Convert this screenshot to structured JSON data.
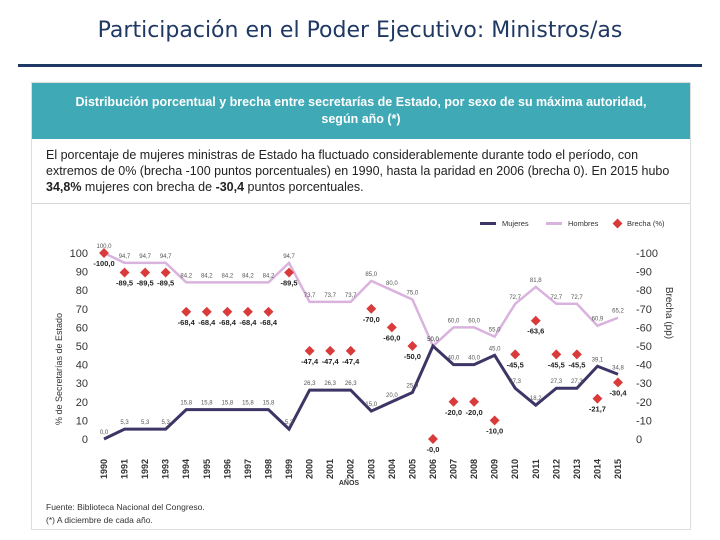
{
  "slide_title": "Participación en el Poder Ejecutivo: Ministros/as",
  "panel": {
    "header": "Distribución porcentual y brecha entre secretarías de Estado, por sexo de su máxima autoridad, según año (*)",
    "desc_1": "El porcentaje de mujeres ministras de Estado ha fluctuado considerablemente durante todo el período, con extremos de 0% (brecha -100 puntos porcentuales) en 1990, hasta la paridad en 2006 (brecha 0). En 2015 hubo ",
    "desc_bold_1": "34,8%",
    "desc_2": " mujeres con brecha de ",
    "desc_bold_2": "-30,4",
    "desc_3": " puntos porcentuales.",
    "source_1": "Fuente: Biblioteca Nacional del Congreso.",
    "source_2": "(*) A diciembre de cada año."
  },
  "colors": {
    "mujeres": "#3d3565",
    "hombres": "#d9b3de",
    "brecha": "#d93a3a",
    "header_bg": "#3fa9b5",
    "title": "#1f3864"
  },
  "chart_data": {
    "type": "line",
    "categories": [
      "1990",
      "1991",
      "1992",
      "1993",
      "1994",
      "1995",
      "1996",
      "1997",
      "1998",
      "1999",
      "2000",
      "2001",
      "2002",
      "2003",
      "2004",
      "2005",
      "2006",
      "2007",
      "2008",
      "2009",
      "2010",
      "2011",
      "2012",
      "2013",
      "2014",
      "2015"
    ],
    "xlabel": "AÑOS",
    "ylabel": "% de Secretarías de Estado",
    "y2label": "Brecha (pp)",
    "ylim": [
      0,
      100
    ],
    "y2lim": [
      0,
      -100
    ],
    "left_ticks": [
      "0",
      "10",
      "20",
      "30",
      "40",
      "50",
      "60",
      "70",
      "80",
      "90",
      "100"
    ],
    "right_ticks": [
      "0",
      "-10",
      "-20",
      "-30",
      "-40",
      "-50",
      "-60",
      "-70",
      "-80",
      "-90",
      "-100"
    ],
    "legend": [
      "Mujeres",
      "Hombres",
      "Brecha (%)"
    ],
    "series": [
      {
        "name": "Mujeres",
        "values": [
          0.0,
          5.3,
          5.3,
          5.3,
          15.8,
          15.8,
          15.8,
          15.8,
          15.8,
          5.3,
          26.3,
          26.3,
          26.3,
          15.0,
          20.0,
          25.0,
          50.0,
          40.0,
          40.0,
          45.0,
          27.3,
          18.2,
          27.3,
          27.3,
          39.1,
          34.8
        ],
        "labels": [
          "0,0",
          "5,3",
          "5,3",
          "5,3",
          "15,8",
          "15,8",
          "15,8",
          "15,8",
          "15,8",
          "5,3",
          "26,3",
          "26,3",
          "26,3",
          "15,0",
          "20,0",
          "25,0",
          "50,0",
          "40,0",
          "40,0",
          "45,0",
          "27,3",
          "18,2",
          "27,3",
          "27,3",
          "39,1",
          "34,8"
        ]
      },
      {
        "name": "Hombres",
        "values": [
          100.0,
          94.7,
          94.7,
          94.7,
          84.2,
          84.2,
          84.2,
          84.2,
          84.2,
          94.7,
          73.7,
          73.7,
          73.7,
          85.0,
          80.0,
          75.0,
          50.0,
          60.0,
          60.0,
          55.0,
          72.7,
          81.8,
          72.7,
          72.7,
          60.9,
          65.2
        ],
        "labels": [
          "100,0",
          "94,7",
          "94,7",
          "94,7",
          "84,2",
          "84,2",
          "84,2",
          "84,2",
          "84,2",
          "94,7",
          "73,7",
          "73,7",
          "73,7",
          "85,0",
          "80,0",
          "75,0",
          "50,0",
          "60,0",
          "60,0",
          "55,0",
          "72,7",
          "81,8",
          "72,7",
          "72,7",
          "60,9",
          "65,2"
        ]
      },
      {
        "name": "Brecha (%)",
        "values": [
          -100.0,
          -89.5,
          -89.5,
          -89.5,
          -68.4,
          -68.4,
          -68.4,
          -68.4,
          -68.4,
          -89.5,
          -47.4,
          -47.4,
          -47.4,
          -70.0,
          -60.0,
          -50.0,
          0.0,
          -20.0,
          -20.0,
          -10.0,
          -45.5,
          -63.6,
          -45.5,
          -45.5,
          -21.7,
          -30.4
        ],
        "labels": [
          "-100,0",
          "-89,5",
          "-89,5",
          "-89,5",
          "-68,4",
          "-68,4",
          "-68,4",
          "-68,4",
          "-68,4",
          "-89,5",
          "-47,4",
          "-47,4",
          "-47,4",
          "-70,0",
          "-60,0",
          "-50,0",
          "-0,0",
          "-20,0",
          "-20,0",
          "-10,0",
          "-45,5",
          "-63,6",
          "-45,5",
          "-45,5",
          "-21,7",
          "-30,4"
        ]
      }
    ]
  }
}
